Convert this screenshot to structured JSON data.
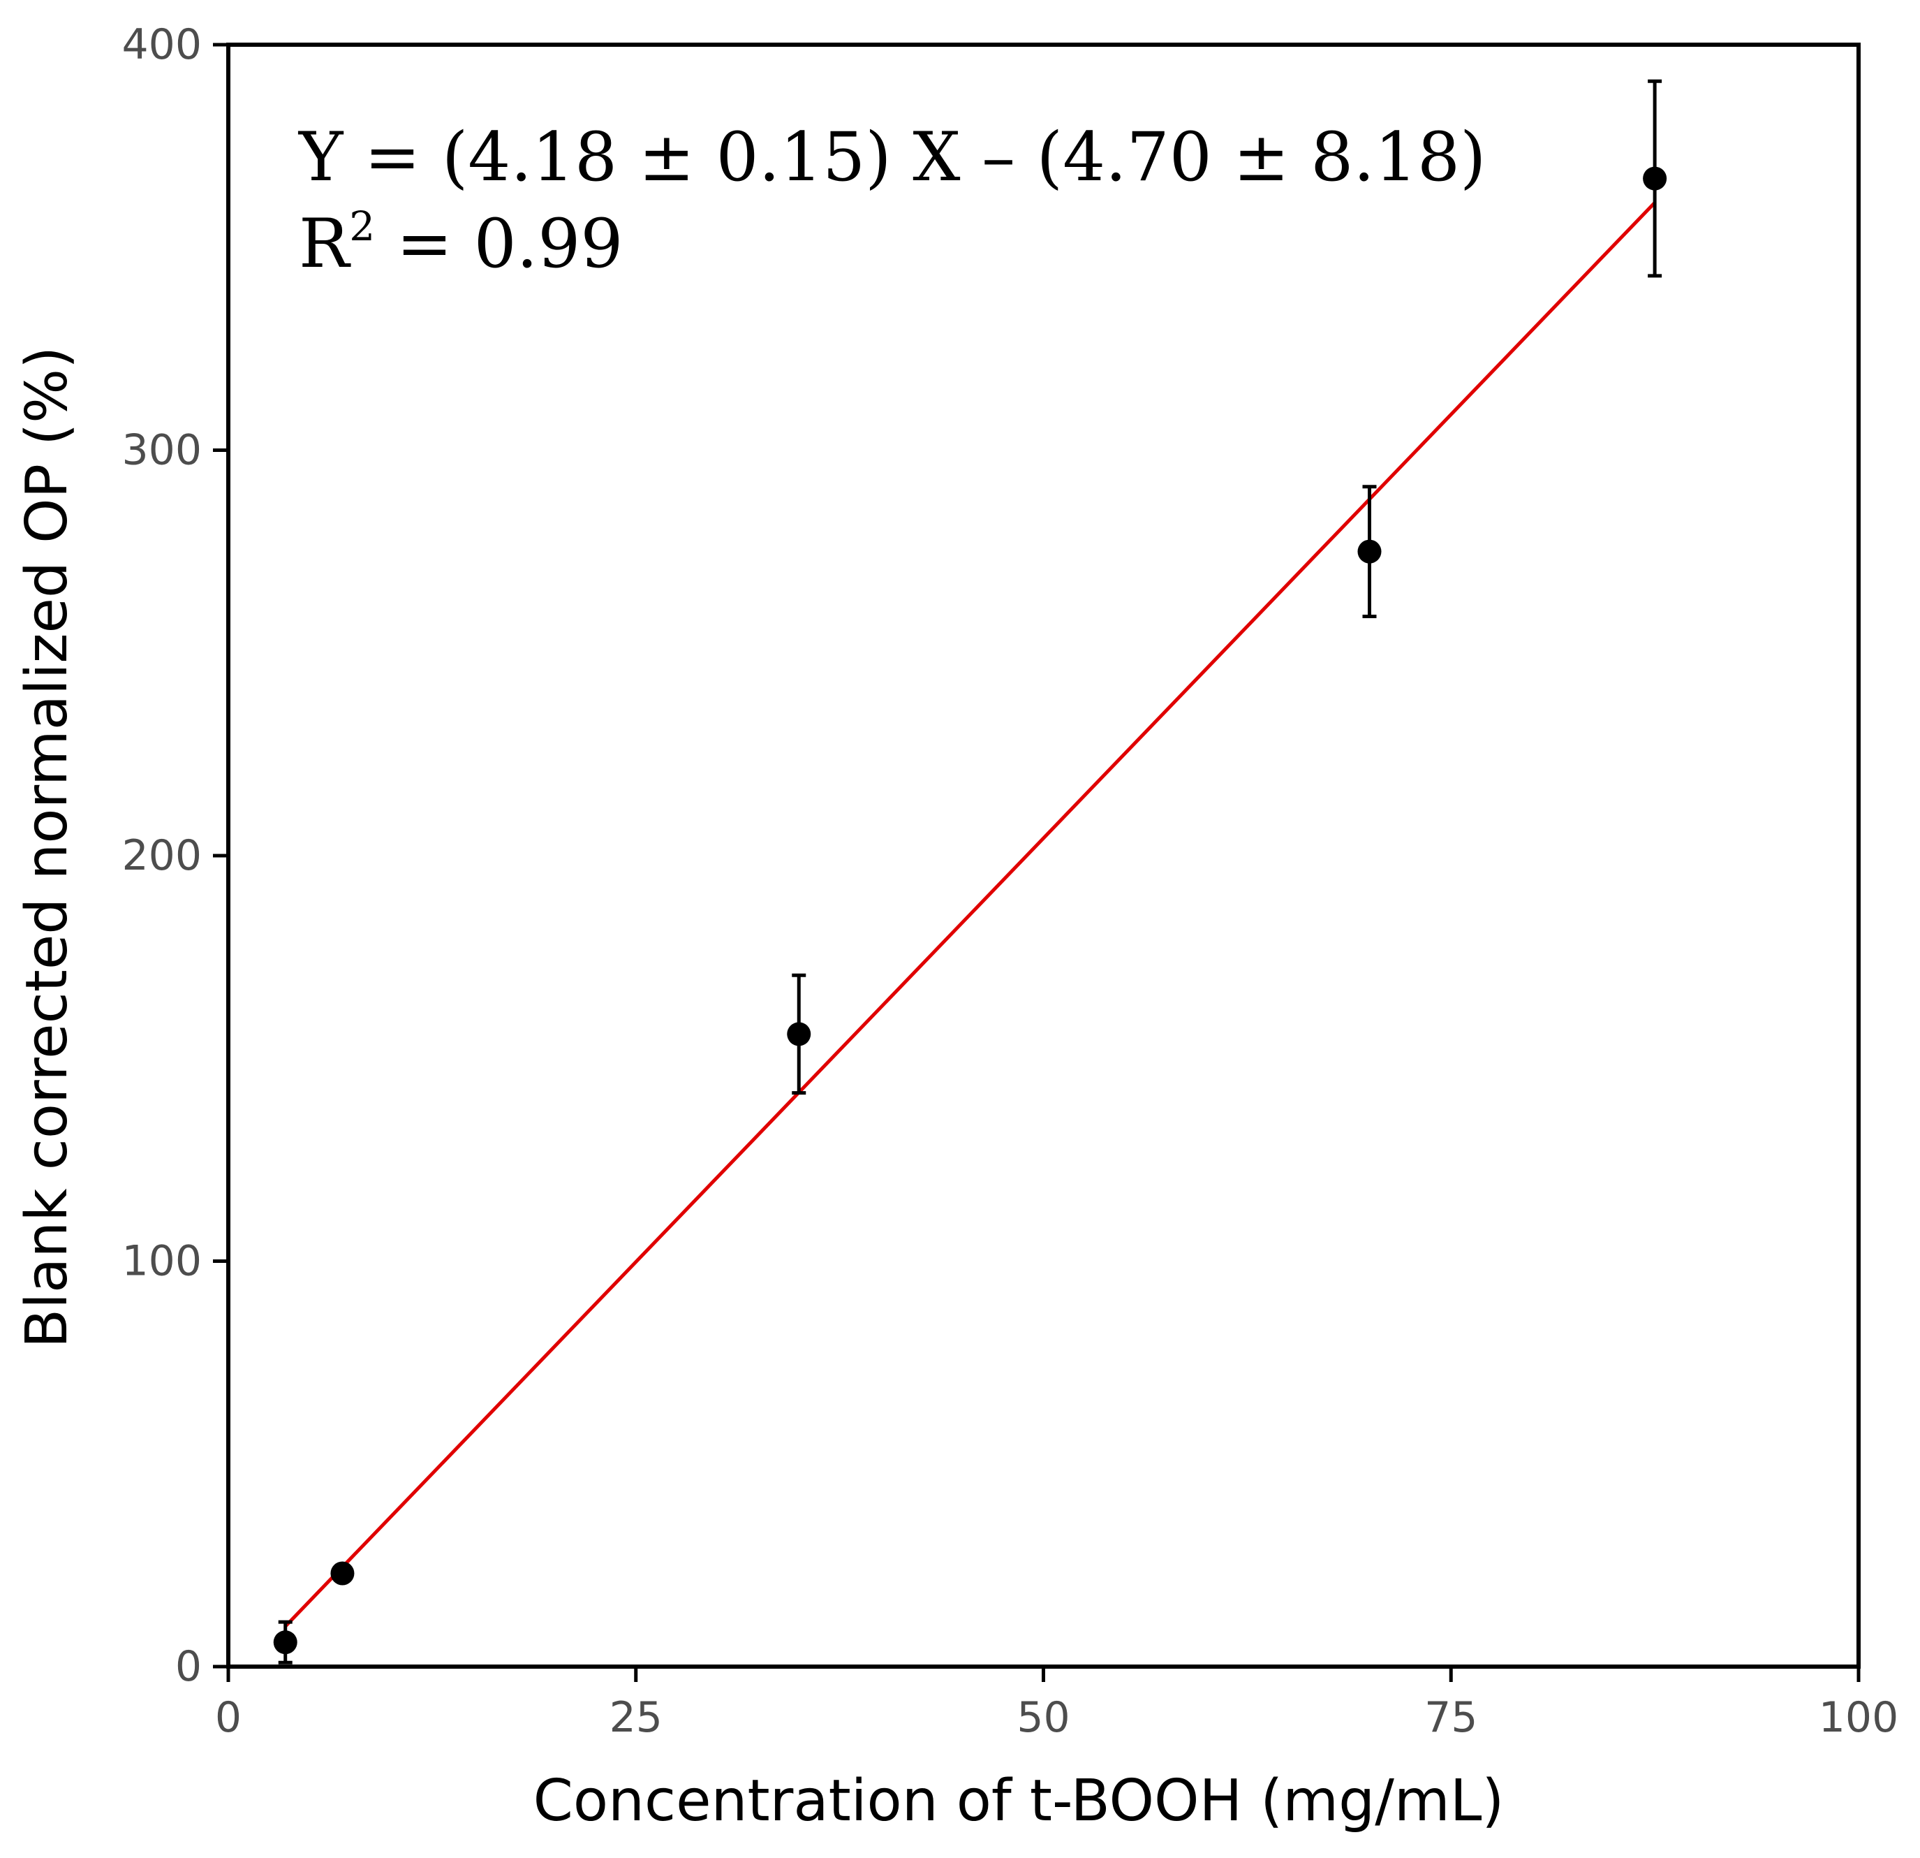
{
  "chart_data": {
    "type": "scatter",
    "title": "",
    "xlabel": "Concentration of t-BOOH (mg/mL)",
    "ylabel": "Blank corrected normalized OP (%)",
    "xlim": [
      0,
      100
    ],
    "ylim": [
      0,
      400
    ],
    "x_ticks": [
      0,
      25,
      50,
      75,
      100
    ],
    "y_ticks": [
      0,
      100,
      200,
      300,
      400
    ],
    "grid": false,
    "legend": "none",
    "series": [
      {
        "x": [
          3.5,
          7,
          35,
          70,
          87.5
        ],
        "y": [
          6,
          23,
          156,
          275,
          367
        ],
        "error": [
          5,
          0,
          14.5,
          16,
          24
        ],
        "color": "#000000"
      }
    ],
    "fit_line": {
      "slope": 4.18,
      "intercept": -4.7,
      "x_range": [
        3.5,
        87.5
      ],
      "color": "#e00000"
    },
    "annotations": {
      "equation": "Y = (4.18 ± 0.15) X – (4.70 ± 8.18)",
      "r2_prefix": "R",
      "r2_superscript": "2",
      "r2_value": " = 0.99"
    }
  }
}
